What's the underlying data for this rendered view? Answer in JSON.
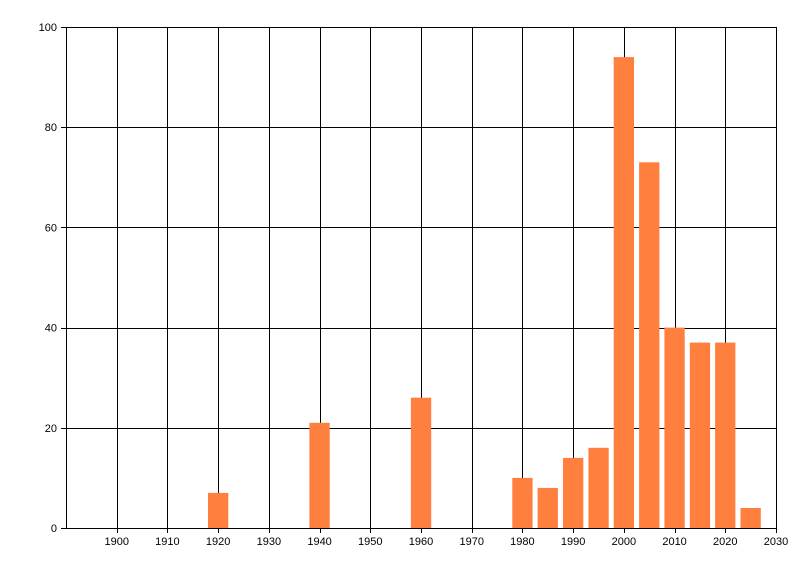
{
  "chart_data": {
    "type": "bar",
    "title": "",
    "xlabel": "",
    "ylabel": "",
    "xlim": [
      1890,
      2030
    ],
    "ylim": [
      0,
      100
    ],
    "x_ticks": [
      1900,
      1910,
      1920,
      1930,
      1940,
      1950,
      1960,
      1970,
      1980,
      1990,
      2000,
      2010,
      2020,
      2030
    ],
    "y_ticks": [
      0,
      20,
      40,
      60,
      80,
      100
    ],
    "grid": true,
    "bar_color": "#ff7f3f",
    "bar_width_years": 4,
    "series": [
      {
        "x": [
          1920,
          1940,
          1960,
          1980,
          1985,
          1990,
          1995,
          2000,
          2005,
          2010,
          2015,
          2020,
          2025
        ],
        "values": [
          7,
          21,
          26,
          10,
          8,
          14,
          16,
          94,
          73,
          40,
          37,
          37,
          4
        ]
      }
    ]
  }
}
